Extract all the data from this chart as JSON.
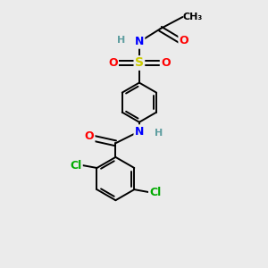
{
  "bg_color": "#ebebeb",
  "bond_color": "#000000",
  "atom_colors": {
    "C": "#000000",
    "H": "#5f9ea0",
    "N": "#0000ff",
    "O": "#ff0000",
    "S": "#cccc00",
    "Cl": "#00aa00"
  },
  "figsize": [
    3.0,
    3.0
  ],
  "dpi": 100
}
